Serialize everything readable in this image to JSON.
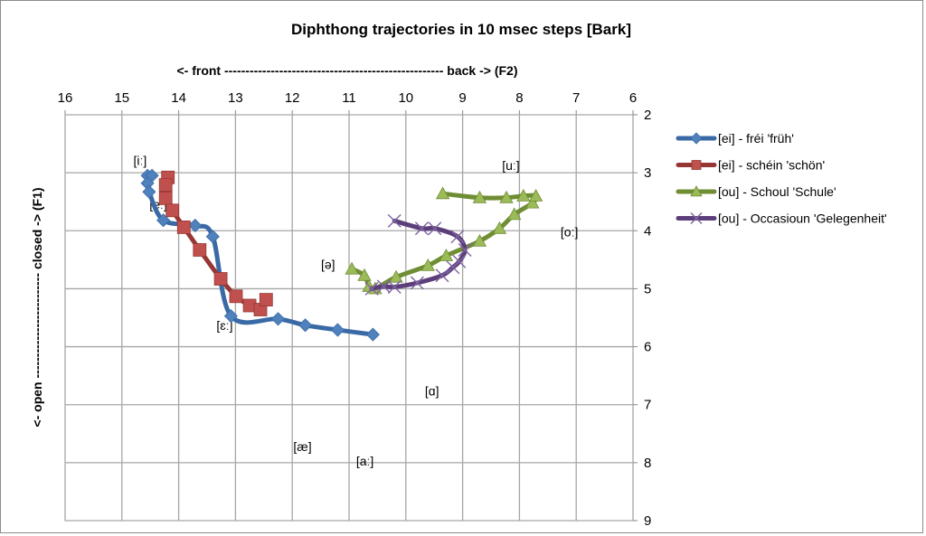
{
  "chart_data": {
    "type": "scatter",
    "title": "Diphthong trajectories in 10 msec steps [Bark]",
    "xlabel": "<- front ---------------------------------------------------- back -> (F2)",
    "ylabel": "<- open ------------------------- closed -> (F1)",
    "xlim": [
      16,
      6
    ],
    "ylim": [
      2,
      9
    ],
    "x_reversed": true,
    "y_reversed": true,
    "x_ticks": [
      16,
      15,
      14,
      13,
      12,
      11,
      10,
      9,
      8,
      7,
      6
    ],
    "y_ticks": [
      2,
      3,
      4,
      5,
      6,
      7,
      8,
      9
    ],
    "grid": true,
    "legend_placement": "right",
    "series": [
      {
        "name": "[ei] - fréi 'früh'",
        "color": "#3a6aa6",
        "marker_color": "#4f81bd",
        "marker": "diamond",
        "x": [
          14.55,
          14.47,
          14.55,
          14.52,
          14.27,
          13.71,
          13.4,
          13.08,
          12.25,
          11.77,
          11.2,
          10.58
        ],
        "y": [
          3.05,
          3.05,
          3.18,
          3.33,
          3.82,
          3.91,
          4.1,
          5.47,
          5.52,
          5.63,
          5.71,
          5.79
        ]
      },
      {
        "name": "[ei] - schéin 'schön'",
        "color": "#963735",
        "marker_color": "#c0504d",
        "marker": "square",
        "x": [
          14.19,
          14.23,
          14.23,
          14.11,
          13.91,
          13.63,
          13.26,
          12.99,
          12.75,
          12.56,
          12.46
        ],
        "y": [
          3.08,
          3.21,
          3.44,
          3.65,
          3.94,
          4.33,
          4.83,
          5.13,
          5.29,
          5.36,
          5.19
        ]
      },
      {
        "name": "[ou] - Schoul 'Schule'",
        "color": "#6f8d33",
        "marker_color": "#9bbb59",
        "marker": "triangle",
        "x": [
          10.95,
          10.73,
          10.65,
          10.54,
          10.17,
          9.61,
          9.29,
          8.7,
          8.35,
          8.09,
          7.77,
          7.71,
          7.93,
          8.23,
          8.7,
          9.35
        ],
        "y": [
          4.66,
          4.77,
          4.96,
          5.0,
          4.8,
          4.6,
          4.43,
          4.18,
          3.96,
          3.72,
          3.52,
          3.4,
          3.4,
          3.43,
          3.43,
          3.36
        ]
      },
      {
        "name": "[ou] - Occasioun 'Gelegenheit'",
        "color": "#5c3f7a",
        "marker_color": "#8064a2",
        "marker": "x",
        "x": [
          10.2,
          9.72,
          9.49,
          9.09,
          8.96,
          9.06,
          9.17,
          9.36,
          9.8,
          10.2,
          10.39,
          10.6
        ],
        "y": [
          3.83,
          3.96,
          3.96,
          4.1,
          4.33,
          4.53,
          4.63,
          4.77,
          4.9,
          4.97,
          4.96,
          5.0
        ]
      }
    ],
    "annotations": [
      {
        "text": "[iː]",
        "x": 14.68,
        "y": 2.79
      },
      {
        "text": "[eː]",
        "x": 14.36,
        "y": 3.54
      },
      {
        "text": "[ɛː]",
        "x": 13.19,
        "y": 5.63
      },
      {
        "text": "[ə]",
        "x": 11.37,
        "y": 4.58
      },
      {
        "text": "[uː]",
        "x": 8.15,
        "y": 2.87
      },
      {
        "text": "[oː]",
        "x": 7.12,
        "y": 4.02
      },
      {
        "text": "[ɑ]",
        "x": 9.54,
        "y": 6.76
      },
      {
        "text": "[æ]",
        "x": 11.82,
        "y": 7.72
      },
      {
        "text": "[aː]",
        "x": 10.72,
        "y": 7.97
      }
    ]
  }
}
